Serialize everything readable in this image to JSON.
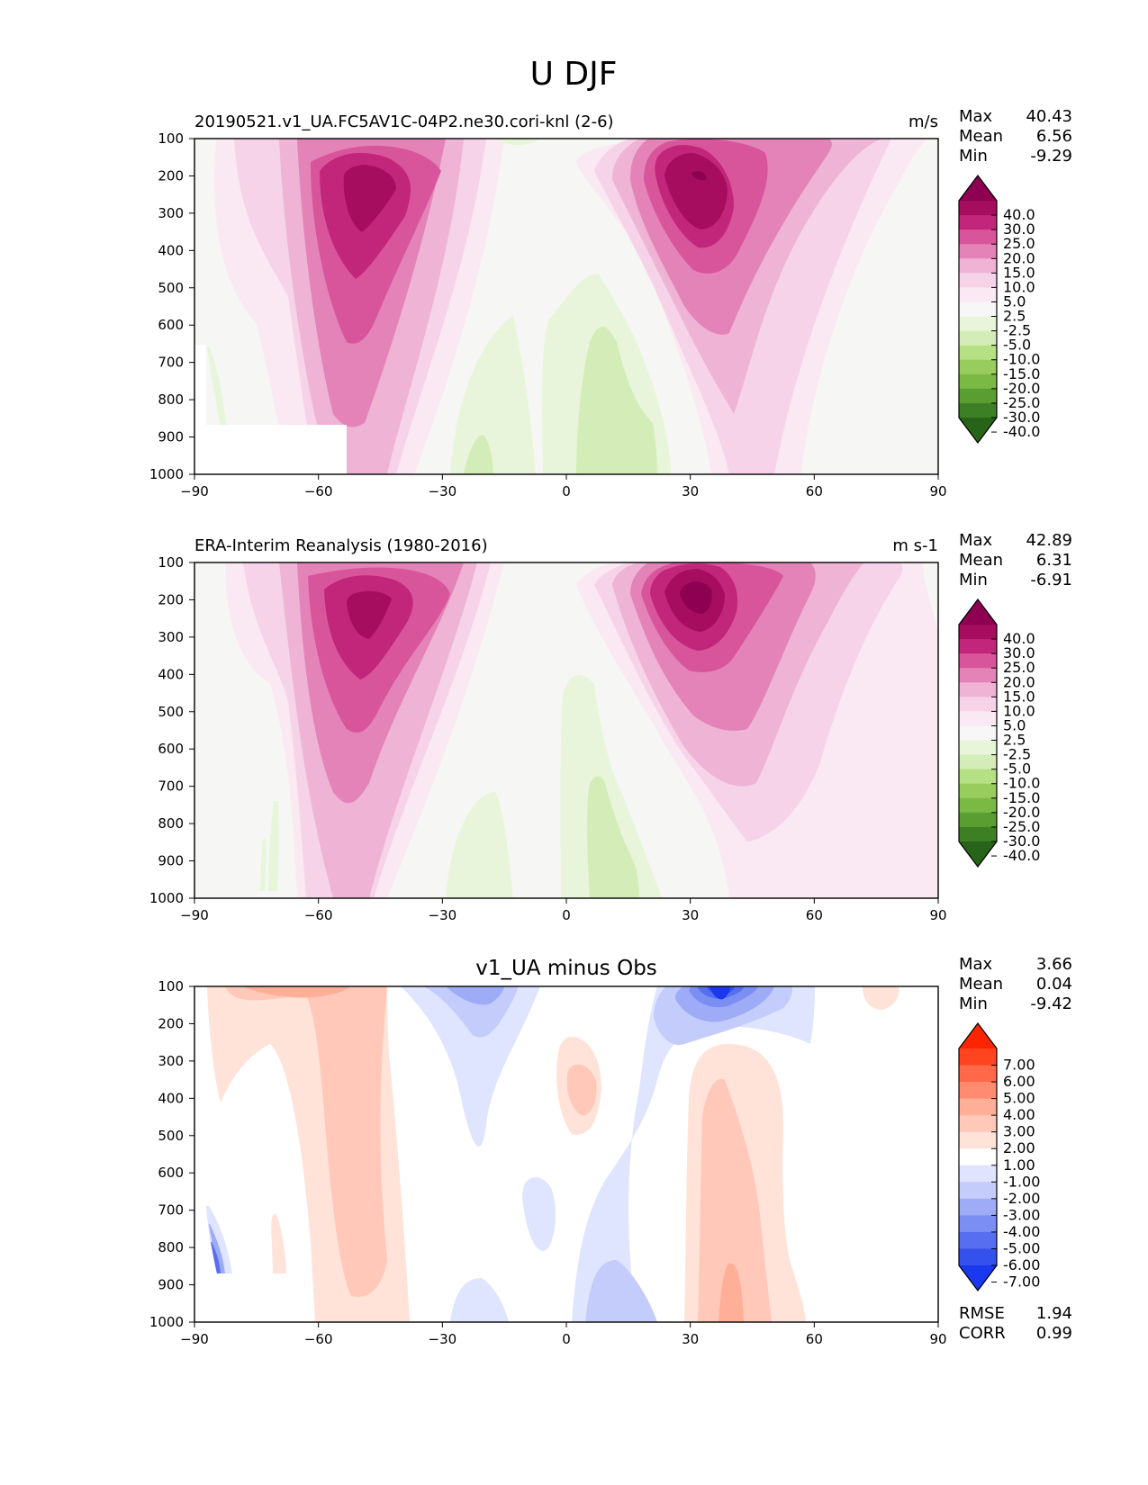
{
  "figure_title": "U DJF",
  "chart_data": [
    {
      "type": "heatmap",
      "title": "20190521.v1_UA.FC5AV1C-04P2.ne30.cori-knl (2-6)",
      "units": "m/s",
      "stats": [
        {
          "label": "Max",
          "value": "40.43"
        },
        {
          "label": "Mean",
          "value": "6.56"
        },
        {
          "label": "Min",
          "value": "-9.29"
        }
      ],
      "x_ticks": [
        "−90",
        "−60",
        "−30",
        "0",
        "30",
        "60",
        "90"
      ],
      "y_ticks": [
        "100",
        "200",
        "300",
        "400",
        "500",
        "600",
        "700",
        "800",
        "900",
        "1000"
      ],
      "xlim": [
        -90,
        90
      ],
      "ylim": [
        1000,
        100
      ],
      "colorbar": {
        "labels": [
          "40.0",
          "30.0",
          "25.0",
          "20.0",
          "15.0",
          "10.0",
          "5.0",
          "2.5",
          "-2.5",
          "-5.0",
          "-10.0",
          "-15.0",
          "-20.0",
          "-25.0",
          "-30.0",
          "-40.0"
        ],
        "colors": [
          "#8e0152",
          "#a60d5e",
          "#c2267a",
          "#d8559c",
          "#e483b8",
          "#eeb3d5",
          "#f6d3e8",
          "#fae9f2",
          "#f7f7f7",
          "#e8f5da",
          "#d4edb8",
          "#b6e084",
          "#98cc5c",
          "#7ab944",
          "#5a9e32",
          "#3d7f24",
          "#276419"
        ]
      },
      "jets": [
        {
          "lat": -48,
          "p": 270,
          "max": 35
        },
        {
          "lat": 32,
          "p": 200,
          "max": 40.43
        }
      ]
    },
    {
      "type": "heatmap",
      "title": "ERA-Interim Reanalysis (1980-2016)",
      "units": "m s-1",
      "stats": [
        {
          "label": "Max",
          "value": "42.89"
        },
        {
          "label": "Mean",
          "value": "6.31"
        },
        {
          "label": "Min",
          "value": "-6.91"
        }
      ],
      "x_ticks": [
        "−90",
        "−60",
        "−30",
        "0",
        "30",
        "60",
        "90"
      ],
      "y_ticks": [
        "100",
        "200",
        "300",
        "400",
        "500",
        "600",
        "700",
        "800",
        "900",
        "1000"
      ],
      "xlim": [
        -90,
        90
      ],
      "ylim": [
        1000,
        100
      ],
      "colorbar": {
        "labels": [
          "40.0",
          "30.0",
          "25.0",
          "20.0",
          "15.0",
          "10.0",
          "5.0",
          "2.5",
          "-2.5",
          "-5.0",
          "-10.0",
          "-15.0",
          "-20.0",
          "-25.0",
          "-30.0",
          "-40.0"
        ],
        "colors": [
          "#8e0152",
          "#a60d5e",
          "#c2267a",
          "#d8559c",
          "#e483b8",
          "#eeb3d5",
          "#f6d3e8",
          "#fae9f2",
          "#f7f7f7",
          "#e8f5da",
          "#d4edb8",
          "#b6e084",
          "#98cc5c",
          "#7ab944",
          "#5a9e32",
          "#3d7f24",
          "#276419"
        ]
      },
      "jets": [
        {
          "lat": -50,
          "p": 250,
          "max": 35
        },
        {
          "lat": 32,
          "p": 200,
          "max": 42.89
        }
      ]
    },
    {
      "type": "heatmap",
      "title": "v1_UA minus Obs",
      "units": "",
      "stats": [
        {
          "label": "Max",
          "value": "3.66"
        },
        {
          "label": "Mean",
          "value": "0.04"
        },
        {
          "label": "Min",
          "value": "-9.42"
        }
      ],
      "bottom_stats": [
        {
          "label": "RMSE",
          "value": "1.94"
        },
        {
          "label": "CORR",
          "value": "0.99"
        }
      ],
      "x_ticks": [
        "−90",
        "−60",
        "−30",
        "0",
        "30",
        "60",
        "90"
      ],
      "y_ticks": [
        "100",
        "200",
        "300",
        "400",
        "500",
        "600",
        "700",
        "800",
        "900",
        "1000"
      ],
      "xlim": [
        -90,
        90
      ],
      "ylim": [
        1000,
        100
      ],
      "colorbar": {
        "labels": [
          "7.00",
          "6.00",
          "5.00",
          "4.00",
          "3.00",
          "2.00",
          "1.00",
          "-1.00",
          "-2.00",
          "-3.00",
          "-4.00",
          "-5.00",
          "-6.00",
          "-7.00"
        ],
        "colors": [
          "#ff2400",
          "#ff4420",
          "#ff6848",
          "#ff8c70",
          "#ffae98",
          "#ffc8b8",
          "#ffe2d8",
          "#ffffff",
          "#dfe4ff",
          "#c3ccfb",
          "#9eacf7",
          "#7b8ef3",
          "#566eef",
          "#3451ee",
          "#1a38f0"
        ]
      }
    }
  ]
}
